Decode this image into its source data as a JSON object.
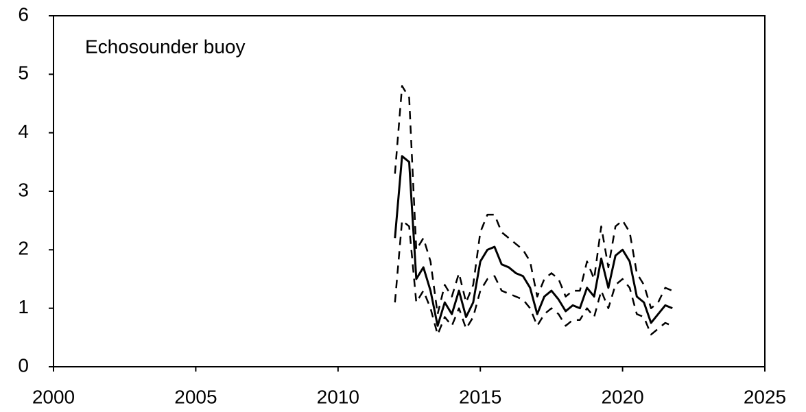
{
  "chart_data": {
    "type": "line",
    "title": "Echosounder buoy",
    "x": [
      2012,
      2012.25,
      2012.5,
      2012.75,
      2013,
      2013.25,
      2013.5,
      2013.75,
      2014,
      2014.25,
      2014.5,
      2014.75,
      2015,
      2015.25,
      2015.5,
      2015.75,
      2016,
      2016.25,
      2016.5,
      2016.75,
      2017,
      2017.25,
      2017.5,
      2017.75,
      2018,
      2018.25,
      2018.5,
      2018.75,
      2019,
      2019.25,
      2019.5,
      2019.75,
      2020,
      2020.25,
      2020.5,
      2020.75,
      2021,
      2021.25,
      2021.5,
      2021.75
    ],
    "series": [
      {
        "color": "#000000",
        "dashed": false,
        "values": [
          2.2,
          3.6,
          3.5,
          1.5,
          1.7,
          1.3,
          0.7,
          1.1,
          0.9,
          1.3,
          0.85,
          1.1,
          1.8,
          2.0,
          2.05,
          1.75,
          1.7,
          1.6,
          1.55,
          1.35,
          0.9,
          1.2,
          1.3,
          1.15,
          0.95,
          1.05,
          1.0,
          1.35,
          1.2,
          1.85,
          1.35,
          1.9,
          2.0,
          1.8,
          1.2,
          1.1,
          0.75,
          0.9,
          1.05,
          1.0
        ]
      },
      {
        "color": "#000000",
        "dashed": true,
        "values": [
          3.3,
          4.8,
          4.6,
          2.0,
          2.2,
          1.8,
          0.9,
          1.4,
          1.2,
          1.6,
          1.1,
          1.4,
          2.3,
          2.6,
          2.6,
          2.3,
          2.2,
          2.1,
          2.0,
          1.8,
          1.2,
          1.5,
          1.6,
          1.5,
          1.2,
          1.3,
          1.3,
          1.8,
          1.5,
          2.4,
          1.7,
          2.4,
          2.5,
          2.3,
          1.6,
          1.4,
          1.0,
          1.1,
          1.35,
          1.3
        ]
      },
      {
        "color": "#000000",
        "dashed": true,
        "values": [
          1.1,
          2.5,
          2.4,
          1.1,
          1.3,
          1.0,
          0.55,
          0.85,
          0.7,
          1.0,
          0.65,
          0.85,
          1.3,
          1.5,
          1.55,
          1.3,
          1.25,
          1.2,
          1.15,
          1.0,
          0.7,
          0.9,
          1.0,
          0.9,
          0.7,
          0.8,
          0.8,
          1.0,
          0.85,
          1.3,
          1.0,
          1.4,
          1.5,
          1.35,
          0.9,
          0.85,
          0.55,
          0.65,
          0.75,
          0.7
        ]
      }
    ],
    "xlim": [
      2000,
      2025
    ],
    "xticks": [
      2000,
      2005,
      2010,
      2015,
      2020,
      2025
    ],
    "ylim": [
      0,
      6
    ],
    "yticks": [
      0,
      1,
      2,
      3,
      4,
      5,
      6
    ]
  }
}
